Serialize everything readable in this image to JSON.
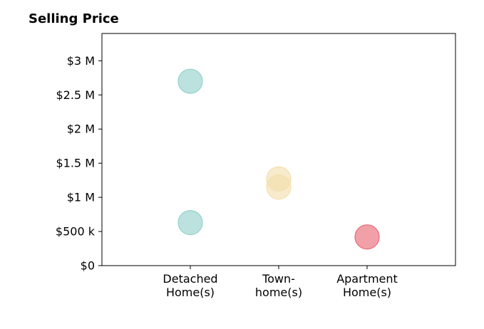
{
  "chart_data": {
    "type": "scatter",
    "title": "Selling Price",
    "xlabel": "",
    "ylabel": "",
    "categories": [
      [
        "Detached",
        "Home(s)"
      ],
      [
        "Town-",
        "home(s)"
      ],
      [
        "Apartment",
        "Home(s)"
      ]
    ],
    "xlim": [
      -1,
      3
    ],
    "ylim": [
      0,
      3.4
    ],
    "y_ticks": [
      0,
      0.5,
      1,
      1.5,
      2,
      2.5,
      3
    ],
    "y_tick_labels": [
      "$0",
      "$500 k",
      "$1 M",
      "$1.5 M",
      "$2 M",
      "$2.5 M",
      "$3 M"
    ],
    "y_unit": "millions USD",
    "grid": false,
    "series": [
      {
        "category_index": 0,
        "color": "#8ecfc9",
        "values": [
          2.7,
          0.63
        ]
      },
      {
        "category_index": 1,
        "color": "#f3deaa",
        "values": [
          1.27,
          1.15
        ]
      },
      {
        "category_index": 2,
        "color": "#e8606e",
        "values": [
          0.42
        ]
      }
    ]
  }
}
